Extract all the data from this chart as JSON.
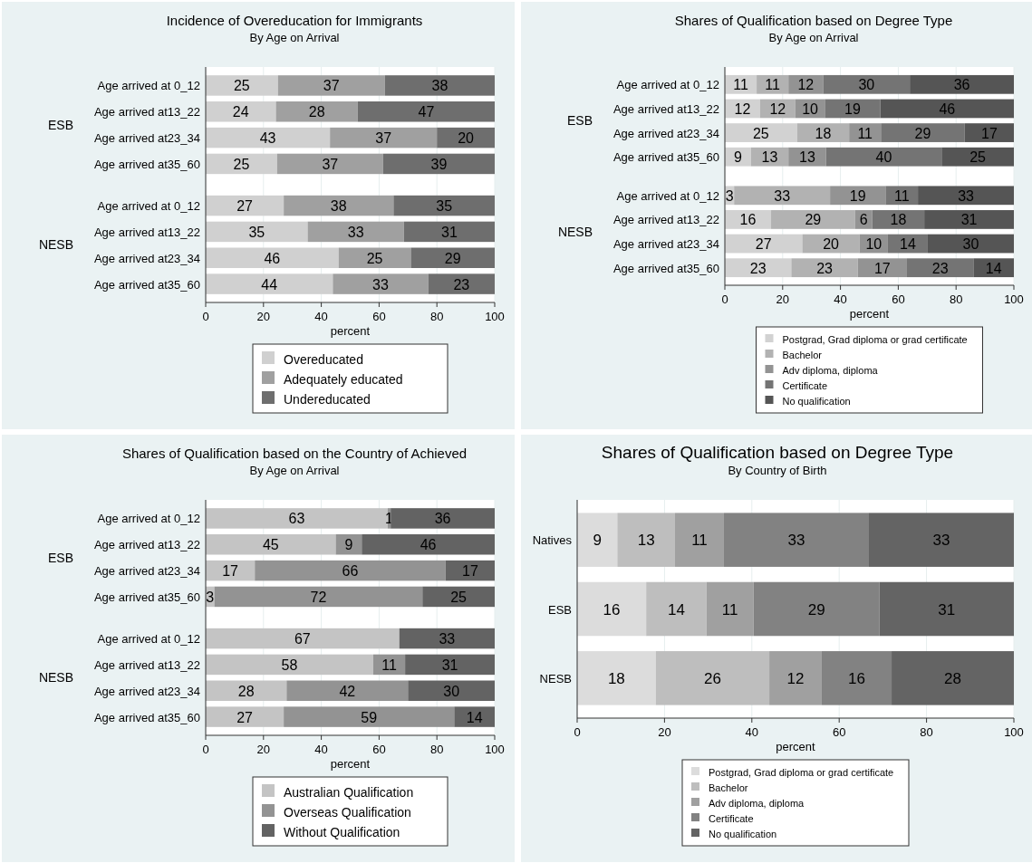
{
  "chart_data": [
    {
      "type": "bar",
      "orientation": "horizontal",
      "stacked": true,
      "title": "Incidence of Overeducation for Immigrants",
      "subtitle": "By Age on Arrival",
      "xlabel": "percent",
      "annotations": [
        "ESB",
        "NESB"
      ],
      "categories": [
        "Age arrived at 0_12",
        "Age arrived at13_22",
        "Age arrived at23_34",
        "Age arrived at35_60",
        "Age arrived at 0_12",
        "Age arrived at13_22",
        "Age arrived at23_34",
        "Age arrived at35_60"
      ],
      "xlim": [
        0,
        100
      ],
      "xticks": [
        0,
        20,
        40,
        60,
        80,
        100
      ],
      "grid": "x",
      "legend": "bottom",
      "series": [
        {
          "name": "Overeducated",
          "color": "#d0d0d0",
          "values": [
            25,
            24.3,
            43,
            24.7,
            27,
            35.3,
            46,
            44
          ],
          "value_labels": [
            "25",
            "24",
            "43",
            "25",
            "27",
            "35",
            "46",
            "44"
          ]
        },
        {
          "name": "Adequately educated",
          "color": "#a0a0a0",
          "values": [
            37,
            28.3,
            37,
            36.7,
            38,
            33.3,
            25,
            33
          ],
          "value_labels": [
            "37",
            "28",
            "37",
            "37",
            "38",
            "33",
            "25",
            "33"
          ]
        },
        {
          "name": "Undereducated",
          "color": "#6e6e6e",
          "values": [
            38,
            47.4,
            20,
            38.6,
            35,
            31.4,
            29,
            23
          ],
          "value_labels": [
            "38",
            "47",
            "20",
            "39",
            "35",
            "31",
            "29",
            "23"
          ]
        }
      ]
    },
    {
      "type": "bar",
      "orientation": "horizontal",
      "stacked": true,
      "title": "Shares of Qualification based on Degree Type",
      "subtitle": "By Age on Arrival",
      "xlabel": "percent",
      "annotations": [
        "ESB",
        "NESB"
      ],
      "categories": [
        "Age arrived at 0_12",
        "Age arrived at13_22",
        "Age arrived at23_34",
        "Age arrived at35_60",
        "Age arrived at 0_12",
        "Age arrived at13_22",
        "Age arrived at23_34",
        "Age arrived at35_60"
      ],
      "xlim": [
        0,
        100
      ],
      "xticks": [
        0,
        20,
        40,
        60,
        80,
        100
      ],
      "grid": "x",
      "legend": "bottom",
      "series": [
        {
          "name": "Postgrad, Grad diploma or grad certificate",
          "color": "#d2d2d2",
          "values": [
            11,
            12.2,
            25,
            9,
            3.2,
            16,
            26.8,
            23
          ],
          "value_labels": [
            "11",
            "12",
            "25",
            "9",
            "3",
            "16",
            "27",
            "23"
          ]
        },
        {
          "name": "Bachelor",
          "color": "#b2b2b2",
          "values": [
            11,
            12.2,
            18,
            13,
            33.2,
            29,
            19.8,
            23
          ],
          "value_labels": [
            "11",
            "12",
            "18",
            "13",
            "33",
            "29",
            "20",
            "23"
          ]
        },
        {
          "name": "Adv diploma, diploma",
          "color": "#939393",
          "values": [
            12,
            10.2,
            11,
            13,
            19.2,
            6,
            9.8,
            17
          ],
          "value_labels": [
            "12",
            "10",
            "11",
            "13",
            "19",
            "6",
            "10",
            "17"
          ]
        },
        {
          "name": "Certificate",
          "color": "#747474",
          "values": [
            30,
            19.2,
            29,
            40,
            11.2,
            18,
            13.8,
            23
          ],
          "value_labels": [
            "30",
            "19",
            "29",
            "40",
            "11",
            "18",
            "14",
            "23"
          ]
        },
        {
          "name": "No qualification",
          "color": "#555555",
          "values": [
            36,
            46.2,
            17,
            25,
            33.2,
            31,
            29.8,
            14
          ],
          "value_labels": [
            "36",
            "46",
            "17",
            "25",
            "33",
            "31",
            "30",
            "14"
          ]
        }
      ]
    },
    {
      "type": "bar",
      "orientation": "horizontal",
      "stacked": true,
      "title": "Shares of Qualification based on the Country of Achieved",
      "subtitle": "By Age on Arrival",
      "xlabel": "percent",
      "annotations": [
        "ESB",
        "NESB"
      ],
      "categories": [
        "Age arrived at 0_12",
        "Age arrived at13_22",
        "Age arrived at23_34",
        "Age arrived at35_60",
        "Age arrived at 0_12",
        "Age arrived at13_22",
        "Age arrived at23_34",
        "Age arrived at35_60"
      ],
      "xlim": [
        0,
        100
      ],
      "xticks": [
        0,
        20,
        40,
        60,
        80,
        100
      ],
      "grid": "x",
      "legend": "bottom",
      "series": [
        {
          "name": "Australian Qualification",
          "color": "#c4c4c4",
          "values": [
            63,
            45,
            17,
            3,
            67,
            58,
            28,
            27
          ],
          "value_labels": [
            "63",
            "45",
            "17",
            "3",
            "67",
            "58",
            "28",
            "27"
          ]
        },
        {
          "name": "Overseas Qualification",
          "color": "#939393",
          "values": [
            1,
            9,
            66,
            72,
            0,
            11,
            42,
            59
          ],
          "value_labels": [
            "1",
            "9",
            "66",
            "72",
            null,
            "11",
            "42",
            "59"
          ]
        },
        {
          "name": "Without Qualification",
          "color": "#636363",
          "values": [
            36,
            46,
            17,
            25,
            33,
            31,
            30,
            14
          ],
          "value_labels": [
            "36",
            "46",
            "17",
            "25",
            "33",
            "31",
            "30",
            "14"
          ]
        }
      ]
    },
    {
      "type": "bar",
      "orientation": "horizontal",
      "stacked": true,
      "title": "Shares of Qualification based on Degree Type",
      "subtitle": "By Country of Birth",
      "xlabel": "percent",
      "categories": [
        "Natives",
        "ESB",
        "NESB"
      ],
      "xlim": [
        0,
        100
      ],
      "xticks": [
        0,
        20,
        40,
        60,
        80,
        100
      ],
      "grid": "x",
      "legend": "bottom",
      "series": [
        {
          "name": "Postgrad, Grad diploma or grad certificate",
          "color": "#dcdcdc",
          "values": [
            9.2,
            15.8,
            18
          ],
          "value_labels": [
            "9",
            "16",
            "18"
          ]
        },
        {
          "name": "Bachelor",
          "color": "#bebebe",
          "values": [
            13.2,
            13.8,
            26
          ],
          "value_labels": [
            "13",
            "14",
            "26"
          ]
        },
        {
          "name": "Adv diploma, diploma",
          "color": "#a0a0a0",
          "values": [
            11.2,
            10.8,
            12
          ],
          "value_labels": [
            "11",
            "11",
            "12"
          ]
        },
        {
          "name": "Certificate",
          "color": "#828282",
          "values": [
            33.2,
            28.8,
            16
          ],
          "value_labels": [
            "33",
            "29",
            "16"
          ]
        },
        {
          "name": "No qualification",
          "color": "#646464",
          "values": [
            33.2,
            30.8,
            28
          ],
          "value_labels": [
            "33",
            "31",
            "28"
          ]
        }
      ]
    }
  ]
}
